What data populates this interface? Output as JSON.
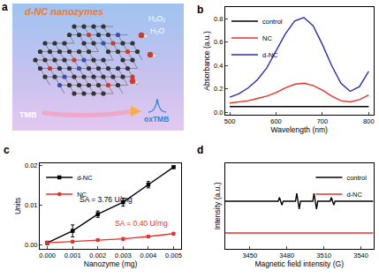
{
  "diagram": {
    "panel": "a",
    "title": "d-NC nanozymes",
    "species": {
      "oxidant": "H₂O₂",
      "water": "H₂O",
      "substrate": "TMB",
      "product": "oxTMB"
    }
  },
  "chart_data": [
    {
      "panel": "b",
      "type": "line",
      "x_label": "Wavelength (nm)",
      "y_label": "Absorbance (a.u.)",
      "xlim": [
        490,
        810
      ],
      "ylim": [
        -0.02,
        0.9
      ],
      "xticks": [
        500,
        600,
        700,
        800
      ],
      "yticks": [
        {
          "value": 0,
          "label": "0.0"
        },
        0.2,
        0.4,
        0.6,
        0.8
      ],
      "grid": false,
      "legend": "upper left",
      "series": [
        {
          "name": "control",
          "color": "#000000",
          "x": [
            500,
            520,
            540,
            560,
            580,
            600,
            620,
            640,
            660,
            680,
            700,
            720,
            740,
            760,
            780,
            800
          ],
          "values": [
            0.05,
            0.05,
            0.05,
            0.05,
            0.05,
            0.05,
            0.05,
            0.05,
            0.05,
            0.05,
            0.05,
            0.05,
            0.05,
            0.05,
            0.05,
            0.05
          ]
        },
        {
          "name": "NC",
          "color": "#e8312a",
          "x": [
            500,
            520,
            540,
            560,
            580,
            600,
            620,
            640,
            660,
            680,
            700,
            720,
            740,
            760,
            780,
            800
          ],
          "values": [
            0.08,
            0.09,
            0.1,
            0.12,
            0.14,
            0.17,
            0.21,
            0.24,
            0.25,
            0.23,
            0.19,
            0.14,
            0.1,
            0.09,
            0.11,
            0.15
          ]
        },
        {
          "name": "d-NC",
          "color": "#2b2bb8",
          "x": [
            500,
            520,
            540,
            560,
            580,
            600,
            620,
            640,
            660,
            680,
            700,
            720,
            740,
            760,
            780,
            800
          ],
          "values": [
            0.13,
            0.16,
            0.21,
            0.28,
            0.38,
            0.52,
            0.67,
            0.78,
            0.81,
            0.74,
            0.58,
            0.4,
            0.25,
            0.18,
            0.22,
            0.35
          ]
        }
      ]
    },
    {
      "panel": "c",
      "type": "line",
      "x_label": "Nanozyme (mg)",
      "y_label": "Units",
      "xlim": [
        -0.0003,
        0.0053
      ],
      "ylim": [
        -0.001,
        0.0205
      ],
      "xticks": [
        {
          "value": 0,
          "label": "0.000"
        },
        {
          "value": 0.001,
          "label": "0.001"
        },
        {
          "value": 0.002,
          "label": "0.002"
        },
        {
          "value": 0.003,
          "label": "0.003"
        },
        {
          "value": 0.004,
          "label": "0.004"
        },
        {
          "value": 0.005,
          "label": "0.005"
        }
      ],
      "yticks": [
        {
          "value": 0,
          "label": "0.00"
        },
        0.01,
        0.02
      ],
      "grid": false,
      "legend": "upper left",
      "annotations": [
        {
          "text": "SA = 3.76 U/mg",
          "color": "#000000"
        },
        {
          "text": "SA = 0.40 U/mg",
          "color": "#e8312a"
        }
      ],
      "series": [
        {
          "name": "d-NC",
          "color": "#000000",
          "marker": "square",
          "x": [
            0,
            0.001,
            0.002,
            0.003,
            0.004,
            0.005
          ],
          "values": [
            0.0005,
            0.0035,
            0.0077,
            0.0107,
            0.0151,
            0.0195
          ],
          "errors": [
            0.0004,
            0.0015,
            0.0008,
            0.001,
            0.0008,
            0.0003
          ]
        },
        {
          "name": "NC",
          "color": "#e8312a",
          "marker": "circle",
          "x": [
            0,
            0.001,
            0.002,
            0.003,
            0.004,
            0.005
          ],
          "values": [
            0.0005,
            0.0008,
            0.0012,
            0.0015,
            0.0021,
            0.0028
          ],
          "errors": [
            0.0003,
            0.0003,
            0.0003,
            0.0003,
            0.0003,
            0.0003
          ]
        }
      ]
    },
    {
      "panel": "d",
      "type": "line",
      "x_label": "Magnetic field intensity (G)",
      "y_label": "Intensity (a.u.)",
      "xlim": [
        3430,
        3550
      ],
      "ylim": [
        -0.5,
        2.2
      ],
      "xticks": [
        3450,
        3480,
        3510,
        3540
      ],
      "tick_labels": "x",
      "grid": false,
      "legend": "upper right",
      "series": [
        {
          "name": "control",
          "color": "#000000",
          "x": [
            3430,
            3470,
            3473,
            3474,
            3476,
            3477,
            3487,
            3488,
            3490,
            3491,
            3501,
            3502,
            3504,
            3505,
            3515,
            3516,
            3518,
            3519,
            3550
          ],
          "values": [
            1.0,
            1.0,
            1.0,
            1.12,
            0.88,
            1.0,
            1.0,
            1.25,
            0.75,
            1.0,
            1.0,
            1.25,
            0.75,
            1.0,
            1.0,
            1.12,
            0.88,
            1.0,
            1.0
          ]
        },
        {
          "name": "d-NC",
          "color": "#e8312a",
          "x": [
            3430,
            3490,
            3550
          ],
          "values": [
            0,
            0,
            0
          ]
        }
      ]
    }
  ]
}
